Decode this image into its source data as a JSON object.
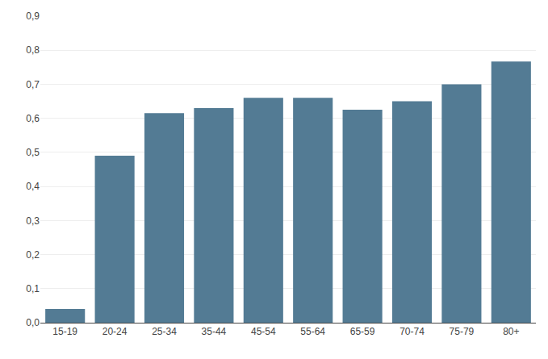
{
  "chart_data": {
    "type": "bar",
    "categories": [
      "15-19",
      "20-24",
      "25-34",
      "35-44",
      "45-54",
      "55-64",
      "65-59",
      "70-74",
      "75-79",
      "80+"
    ],
    "values": [
      0.04,
      0.49,
      0.615,
      0.63,
      0.66,
      0.66,
      0.625,
      0.65,
      0.7,
      0.767
    ],
    "color": "#537b94",
    "ylim": [
      0.0,
      0.9
    ],
    "yticks": [
      {
        "value": 0.0,
        "label": "0,0"
      },
      {
        "value": 0.1,
        "label": "0,1"
      },
      {
        "value": 0.2,
        "label": "0,2"
      },
      {
        "value": 0.3,
        "label": "0,3"
      },
      {
        "value": 0.4,
        "label": "0,4"
      },
      {
        "value": 0.5,
        "label": "0,5"
      },
      {
        "value": 0.6,
        "label": "0,6"
      },
      {
        "value": 0.7,
        "label": "0,7"
      },
      {
        "value": 0.8,
        "label": "0,8"
      },
      {
        "value": 0.9,
        "label": "0,9"
      }
    ],
    "grid": true
  }
}
